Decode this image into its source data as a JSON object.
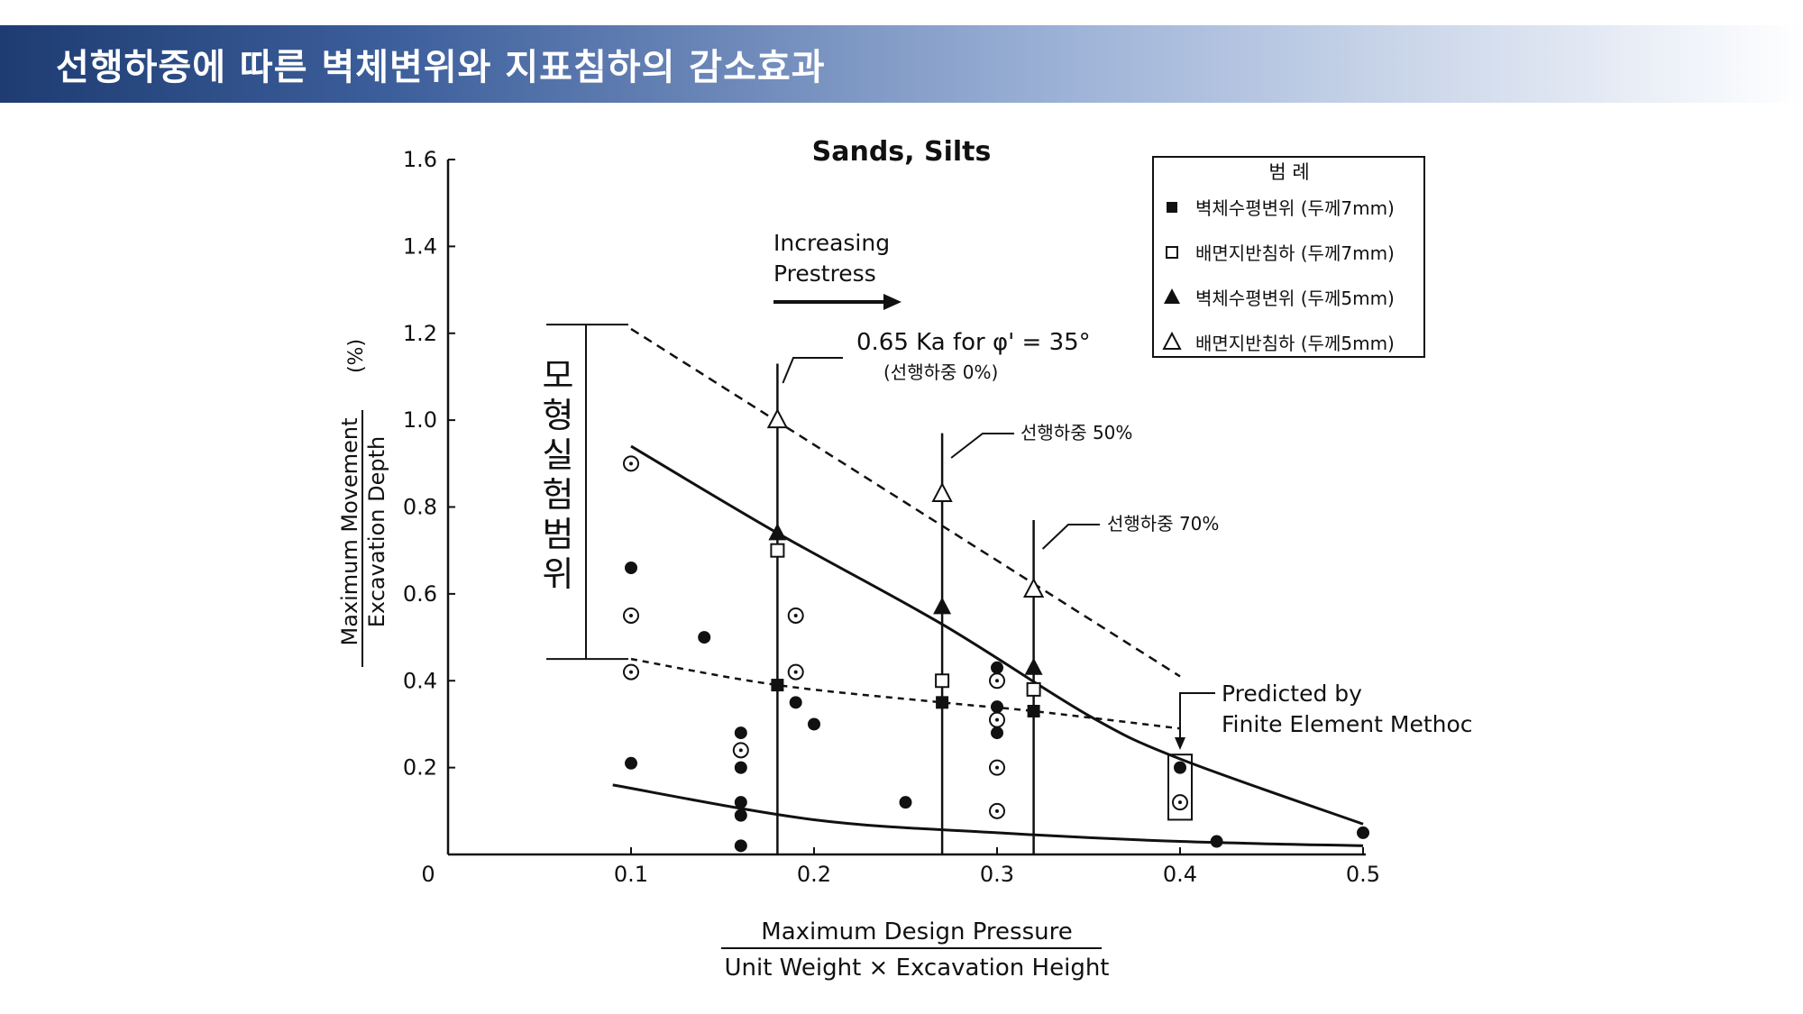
{
  "header": {
    "title": "선행하중에 따른 벽체변위와 지표침하의 감소효과"
  },
  "colors": {
    "title_bar_start": "#1e3c72",
    "title_bar_end": "#ffffff",
    "ink": "#111111"
  },
  "chart_data": {
    "type": "scatter",
    "title": "Sands, Silts",
    "xlabel_numerator": "Maximum Design Pressure",
    "xlabel_denominator": "Unit Weight × Excavation Height",
    "ylabel_numerator": "Maximum Movement",
    "ylabel_denominator": "Excavation Depth",
    "ylabel_unit": "(%)",
    "xlim": [
      0,
      0.5
    ],
    "ylim": [
      0,
      1.6
    ],
    "x_ticks": [
      "0",
      "0.1",
      "0.2",
      "0.3",
      "0.4",
      "0.5"
    ],
    "y_ticks": [
      "0.2",
      "0.4",
      "0.6",
      "0.8",
      "1.0",
      "1.2",
      "1.4",
      "1.6"
    ],
    "legend": {
      "title": "범    례",
      "position": "top-right",
      "items": [
        {
          "marker": "filled-square",
          "label": "벽체수평변위 (두께7mm)"
        },
        {
          "marker": "open-square",
          "label": "배면지반침하 (두께7mm)"
        },
        {
          "marker": "filled-triangle",
          "label": "벽체수평변위 (두께5mm)"
        },
        {
          "marker": "open-triangle",
          "label": "배면지반침하 (두께5mm)"
        }
      ]
    },
    "annotations": {
      "arrow_label_line1": "Increasing",
      "arrow_label_line2": "Prestress",
      "ka_label": "0.65 Ka for φ' = 35°",
      "ka_sub": "(선행하중 0%)",
      "prestress_50": "선행하중 50%",
      "prestress_70": "선행하중 70%",
      "predicted_line1": "Predicted by",
      "predicted_line2": "Finite Element Methoc",
      "range_label": "모형실험범위"
    },
    "vertical_markers_x": [
      0.18,
      0.27,
      0.32
    ],
    "range_bracket_y": [
      0.45,
      1.22
    ],
    "series": [
      {
        "name": "벽체수평변위 (두께7mm)",
        "marker": "filled-square",
        "points": [
          [
            0.18,
            0.39
          ],
          [
            0.27,
            0.35
          ],
          [
            0.32,
            0.33
          ]
        ]
      },
      {
        "name": "배면지반침하 (두께7mm)",
        "marker": "open-square",
        "points": [
          [
            0.18,
            0.7
          ],
          [
            0.27,
            0.4
          ],
          [
            0.32,
            0.38
          ]
        ]
      },
      {
        "name": "벽체수평변위 (두께5mm)",
        "marker": "filled-triangle",
        "points": [
          [
            0.18,
            0.74
          ],
          [
            0.27,
            0.57
          ],
          [
            0.32,
            0.43
          ]
        ]
      },
      {
        "name": "배면지반침하 (두께5mm)",
        "marker": "open-triangle",
        "points": [
          [
            0.18,
            1.0
          ],
          [
            0.27,
            0.83
          ],
          [
            0.32,
            0.61
          ]
        ]
      }
    ],
    "scatter_filled_dots": [
      [
        0.1,
        0.66
      ],
      [
        0.1,
        0.21
      ],
      [
        0.14,
        0.5
      ],
      [
        0.16,
        0.28
      ],
      [
        0.16,
        0.2
      ],
      [
        0.16,
        0.12
      ],
      [
        0.16,
        0.09
      ],
      [
        0.16,
        0.02
      ],
      [
        0.19,
        0.35
      ],
      [
        0.2,
        0.3
      ],
      [
        0.25,
        0.12
      ],
      [
        0.3,
        0.43
      ],
      [
        0.3,
        0.34
      ],
      [
        0.3,
        0.28
      ],
      [
        0.4,
        0.2
      ],
      [
        0.42,
        0.03
      ],
      [
        0.5,
        0.05
      ]
    ],
    "scatter_open_dots": [
      [
        0.1,
        0.9
      ],
      [
        0.1,
        0.55
      ],
      [
        0.1,
        0.42
      ],
      [
        0.16,
        0.24
      ],
      [
        0.19,
        0.55
      ],
      [
        0.19,
        0.42
      ],
      [
        0.3,
        0.4
      ],
      [
        0.3,
        0.31
      ],
      [
        0.3,
        0.2
      ],
      [
        0.3,
        0.1
      ],
      [
        0.4,
        0.12
      ]
    ],
    "curves": {
      "upper_dashed": [
        [
          0.1,
          1.21
        ],
        [
          0.4,
          0.41
        ]
      ],
      "upper_solid": [
        [
          0.1,
          0.94
        ],
        [
          0.18,
          0.74
        ],
        [
          0.27,
          0.53
        ],
        [
          0.35,
          0.32
        ],
        [
          0.4,
          0.22
        ],
        [
          0.5,
          0.07
        ]
      ],
      "middle_dashed": [
        [
          0.1,
          0.45
        ],
        [
          0.18,
          0.39
        ],
        [
          0.27,
          0.35
        ],
        [
          0.32,
          0.33
        ],
        [
          0.4,
          0.29
        ]
      ],
      "lower_solid": [
        [
          0.09,
          0.16
        ],
        [
          0.2,
          0.08
        ],
        [
          0.3,
          0.05
        ],
        [
          0.4,
          0.03
        ],
        [
          0.5,
          0.02
        ]
      ]
    },
    "predicted_box": {
      "x": 0.4,
      "y_range": [
        0.08,
        0.23
      ]
    }
  }
}
